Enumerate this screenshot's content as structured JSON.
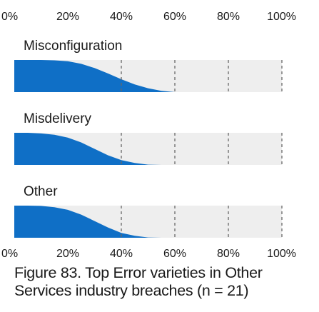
{
  "chart_data": {
    "type": "area",
    "xlim": [
      0,
      100
    ],
    "x_ticks": [
      "0%",
      "20%",
      "40%",
      "60%",
      "80%",
      "100%"
    ],
    "x_tick_values": [
      0,
      20,
      40,
      60,
      80,
      100
    ],
    "grid": "dashed vertical lines at 40%, 60%, 80%, 100%",
    "colors": {
      "fill": "#0f6fc6",
      "band": "#eeeeee",
      "grid": "#666666"
    },
    "caption": "Figure 83. Top Error varieties in Other Services industry breaches (n = 21)",
    "series": [
      {
        "name": "Misconfiguration",
        "x": [
          0,
          5,
          10,
          15,
          20,
          25,
          30,
          35,
          40,
          45,
          50,
          55,
          60
        ],
        "density": [
          1.0,
          1.0,
          1.0,
          0.99,
          0.96,
          0.88,
          0.75,
          0.58,
          0.4,
          0.24,
          0.12,
          0.04,
          0.0
        ]
      },
      {
        "name": "Misdelivery",
        "x": [
          0,
          5,
          10,
          15,
          20,
          25,
          30,
          35,
          40,
          45,
          50,
          55
        ],
        "density": [
          1.0,
          1.0,
          0.98,
          0.94,
          0.85,
          0.7,
          0.5,
          0.3,
          0.15,
          0.06,
          0.01,
          0.0
        ]
      },
      {
        "name": "Other",
        "x": [
          0,
          5,
          10,
          15,
          20,
          25,
          30,
          35,
          40,
          45,
          50,
          55
        ],
        "density": [
          1.0,
          1.0,
          0.99,
          0.95,
          0.87,
          0.72,
          0.52,
          0.32,
          0.15,
          0.06,
          0.01,
          0.0
        ]
      }
    ]
  }
}
